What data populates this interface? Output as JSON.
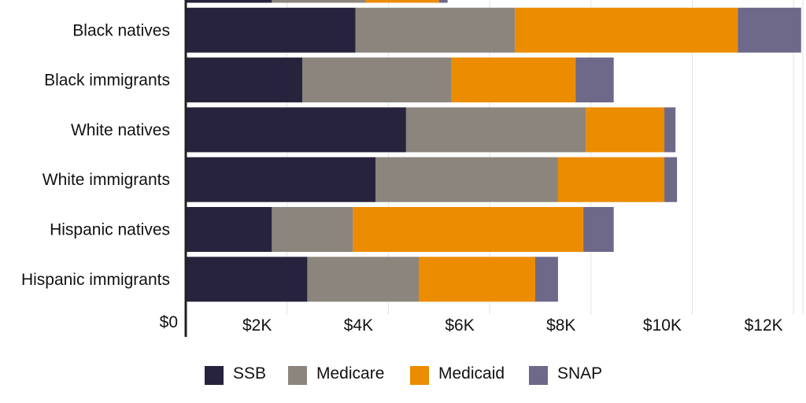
{
  "chart_data": {
    "type": "bar",
    "orientation": "horizontal",
    "stacked": true,
    "categories": [
      "",
      "Black natives",
      "Black immigrants",
      "White natives",
      "White immigrants",
      "Hispanic natives",
      "Hispanic immigrants"
    ],
    "series": [
      {
        "name": "SSB",
        "color": "#28233c",
        "values": [
          1700,
          3350,
          2300,
          4350,
          3750,
          1700,
          2400
        ]
      },
      {
        "name": "Medicare",
        "color": "#8b857e",
        "values": [
          1850,
          3150,
          2950,
          3550,
          3600,
          1600,
          2200
        ]
      },
      {
        "name": "Medicaid",
        "color": "#ec8c00",
        "values": [
          1450,
          4400,
          2450,
          1550,
          2100,
          4550,
          2300
        ]
      },
      {
        "name": "SNAP",
        "color": "#6e6889",
        "values": [
          170,
          1250,
          750,
          220,
          250,
          600,
          450
        ]
      }
    ],
    "x_ticks": [
      {
        "value": 0,
        "label": "$0"
      },
      {
        "value": 2000,
        "label": "$2K"
      },
      {
        "value": 4000,
        "label": "$4K"
      },
      {
        "value": 6000,
        "label": "$6K"
      },
      {
        "value": 8000,
        "label": "$8K"
      },
      {
        "value": 10000,
        "label": "$10K"
      },
      {
        "value": 12000,
        "label": "$12K"
      }
    ],
    "xlim": [
      0,
      12200
    ],
    "grid": "vertical",
    "legend": "bottom-center",
    "title": "",
    "xlabel": "",
    "ylabel": ""
  }
}
